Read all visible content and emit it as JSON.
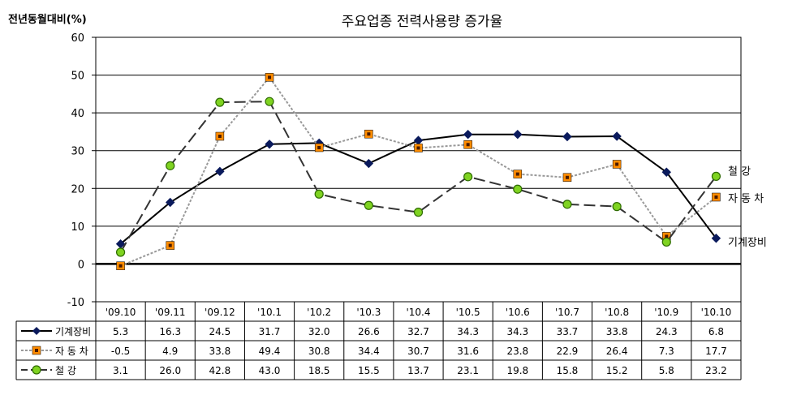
{
  "chart_data": {
    "type": "line",
    "title": "주요업종 전력사용량 증가율",
    "ylabel": "전년동월대비(%)",
    "ylim": [
      -10,
      60
    ],
    "yticks": [
      -10,
      0,
      10,
      20,
      30,
      40,
      50,
      60
    ],
    "grid": true,
    "legend": "table-below",
    "categories": [
      "'09.10",
      "'09.11",
      "'09.12",
      "'10.1",
      "'10.2",
      "'10.3",
      "'10.4",
      "'10.5",
      "'10.6",
      "'10.7",
      "'10.8",
      "'10.9",
      "'10.10"
    ],
    "series": [
      {
        "name": "기계장비",
        "end_label": "기계장비",
        "values": [
          5.3,
          16.3,
          24.5,
          31.7,
          32.0,
          26.6,
          32.7,
          34.3,
          34.3,
          33.7,
          33.8,
          24.3,
          6.8
        ],
        "display": [
          "5.3",
          "16.3",
          "24.5",
          "31.7",
          "32.0",
          "26.6",
          "32.7",
          "34.3",
          "34.3",
          "33.7",
          "33.8",
          "24.3",
          "6.8"
        ],
        "line_color": "#000000",
        "marker_color": "#0a1a5c",
        "marker": "diamond",
        "dash": "solid"
      },
      {
        "name": "자 동 차",
        "end_label": "자 동 차",
        "values": [
          -0.5,
          4.9,
          33.8,
          49.4,
          30.8,
          34.4,
          30.7,
          31.6,
          23.8,
          22.9,
          26.4,
          7.3,
          17.7
        ],
        "display": [
          "-0.5",
          "4.9",
          "33.8",
          "49.4",
          "30.8",
          "34.4",
          "30.7",
          "31.6",
          "23.8",
          "22.9",
          "26.4",
          "7.3",
          "17.7"
        ],
        "line_color": "#999999",
        "marker_color": "#ff8c00",
        "marker_inner": "#4a1a00",
        "marker": "square",
        "dash": "dotted"
      },
      {
        "name": "철      강",
        "end_label": "철      강",
        "values": [
          3.1,
          26.0,
          42.8,
          43.0,
          18.5,
          15.5,
          13.7,
          23.1,
          19.8,
          15.8,
          15.2,
          5.8,
          23.2
        ],
        "display": [
          "3.1",
          "26.0",
          "42.8",
          "43.0",
          "18.5",
          "15.5",
          "13.7",
          "23.1",
          "19.8",
          "15.8",
          "15.2",
          "5.8",
          "23.2"
        ],
        "line_color": "#333333",
        "marker_color": "#7fd321",
        "marker_stroke": "#2e6b00",
        "marker": "circle",
        "dash": "dashed"
      }
    ],
    "colors": {
      "plot_bg": "#ffffff",
      "grid": "#000000",
      "zero_line": "#000000"
    }
  }
}
